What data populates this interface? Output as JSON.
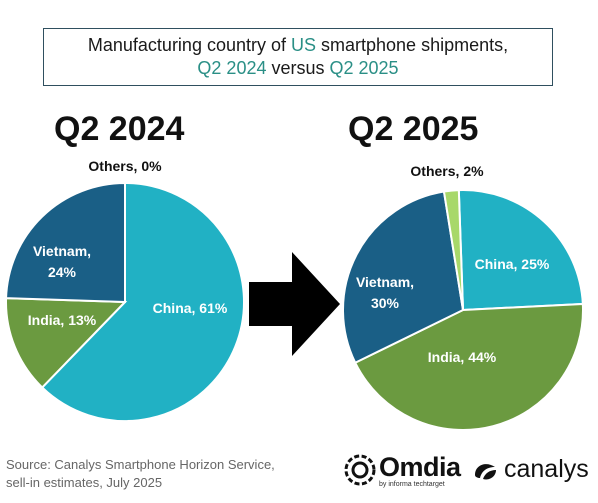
{
  "title": {
    "part1": "Manufacturing country of ",
    "us": "US",
    "part2": " smartphone shipments,",
    "q2024": "Q2 2024",
    "versus": " versus ",
    "q2025": "Q2 2025"
  },
  "chart_data": [
    {
      "type": "pie",
      "title": "Q2 2024",
      "slices": [
        {
          "label": "China",
          "value": 61,
          "text": "China, 61%",
          "color": "#21b1c4"
        },
        {
          "label": "India",
          "value": 13,
          "text": "India, 13%",
          "color": "#6b9a40"
        },
        {
          "label": "Vietnam",
          "value": 24,
          "text": "Vietnam,\n24%",
          "color": "#1a5f86"
        },
        {
          "label": "Others",
          "value": 0,
          "text": "Others, 0%",
          "color": "#a8d86a"
        }
      ]
    },
    {
      "type": "pie",
      "title": "Q2 2025",
      "slices": [
        {
          "label": "China",
          "value": 25,
          "text": "China, 25%",
          "color": "#21b1c4"
        },
        {
          "label": "India",
          "value": 44,
          "text": "India, 44%",
          "color": "#6b9a40"
        },
        {
          "label": "Vietnam",
          "value": 30,
          "text": "Vietnam,\n30%",
          "color": "#1a5f86"
        },
        {
          "label": "Others",
          "value": 2,
          "text": "Others, 2%",
          "color": "#a8d86a"
        }
      ]
    }
  ],
  "source": {
    "line1": "Source: Canalys Smartphone Horizon Service,",
    "line2": "sell-in estimates, July 2025"
  },
  "logos": {
    "omdia": "Omdia",
    "omdia_sub": "by informa techtarget",
    "canalys": "canalys"
  }
}
